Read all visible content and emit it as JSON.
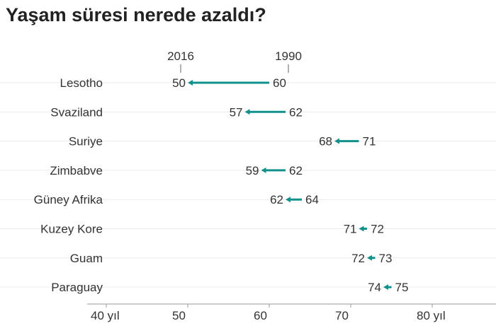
{
  "chart_data": {
    "type": "arrow-dumbbell",
    "title": "Yaşam süresi nerede azaldı?",
    "legend": {
      "start_label": "1990",
      "end_label": "2016"
    },
    "x_ticks": [
      {
        "value": 40,
        "label": "40 yıl"
      },
      {
        "value": 50,
        "label": "50"
      },
      {
        "value": 60,
        "label": "60"
      },
      {
        "value": 70,
        "label": "70"
      },
      {
        "value": 80,
        "label": "80 yıl"
      }
    ],
    "xlim": [
      38,
      88
    ],
    "grid": true,
    "color": "#12908b",
    "rows": [
      {
        "country": "Lesotho",
        "y1990": 60,
        "y2016": 50
      },
      {
        "country": "Svaziland",
        "y1990": 62,
        "y2016": 57
      },
      {
        "country": "Suriye",
        "y1990": 71,
        "y2016": 68
      },
      {
        "country": "Zimbabve",
        "y1990": 62,
        "y2016": 59
      },
      {
        "country": "Güney Afrika",
        "y1990": 64,
        "y2016": 62
      },
      {
        "country": "Kuzey Kore",
        "y1990": 72,
        "y2016": 71
      },
      {
        "country": "Guam",
        "y1990": 73,
        "y2016": 72
      },
      {
        "country": "Paraguay",
        "y1990": 75,
        "y2016": 74
      }
    ]
  }
}
